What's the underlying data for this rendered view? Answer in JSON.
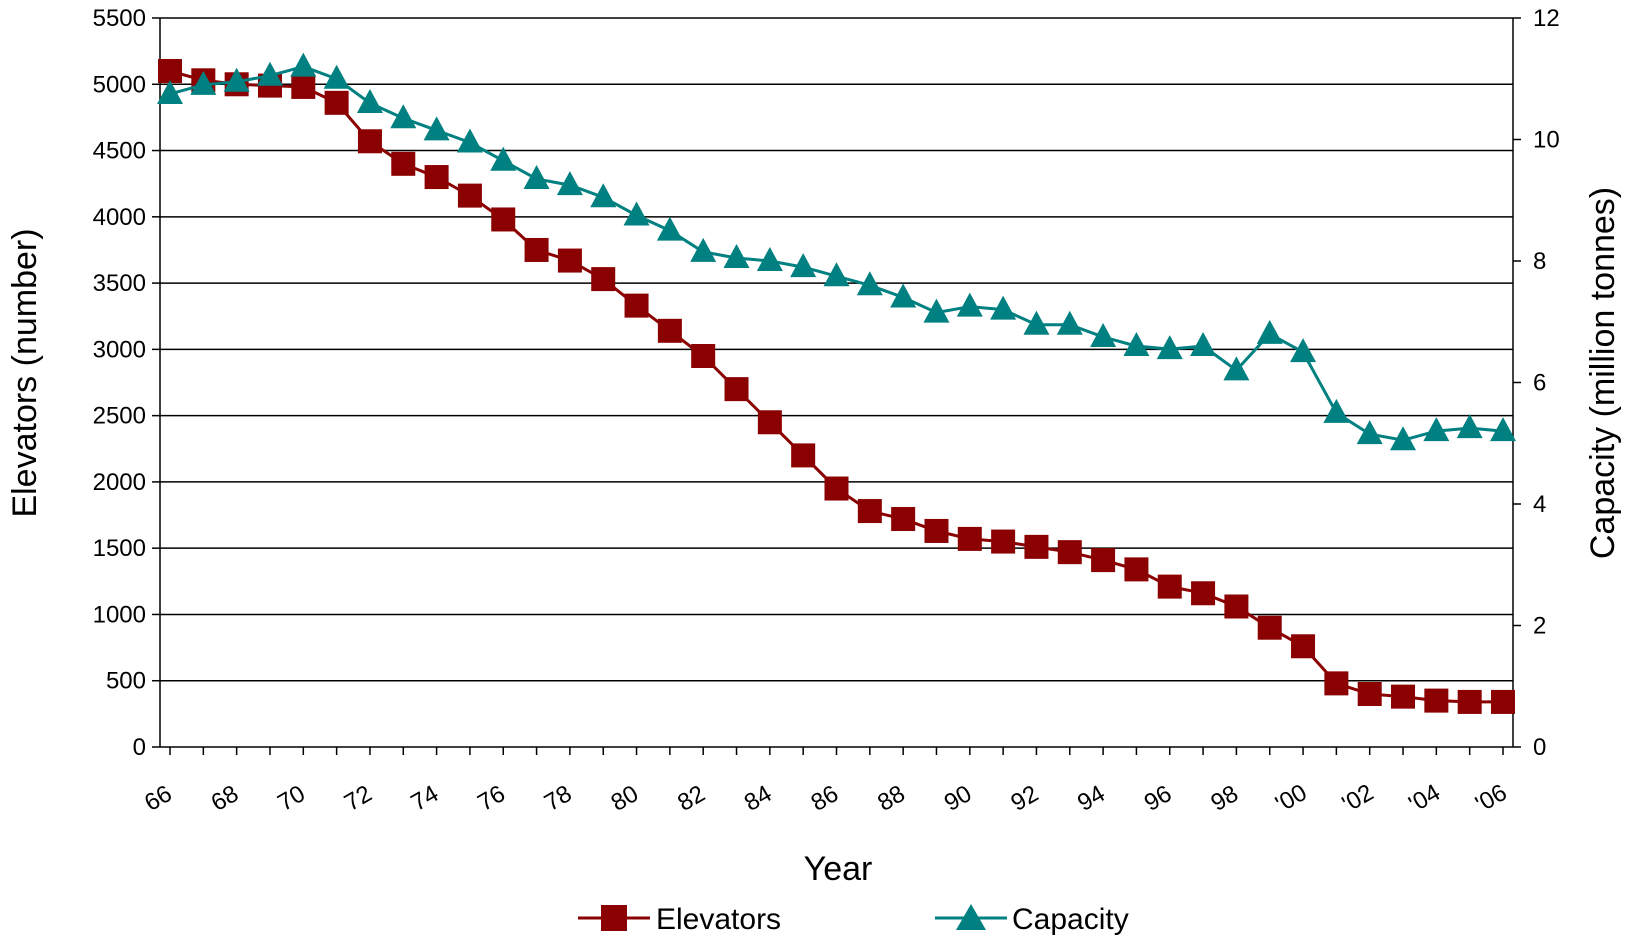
{
  "chart_data": {
    "type": "line",
    "title": "",
    "x": [
      1966,
      1967,
      1968,
      1969,
      1970,
      1971,
      1972,
      1973,
      1974,
      1975,
      1976,
      1977,
      1978,
      1979,
      1980,
      1981,
      1982,
      1983,
      1984,
      1985,
      1986,
      1987,
      1988,
      1989,
      1990,
      1991,
      1992,
      1993,
      1994,
      1995,
      1996,
      1997,
      1998,
      1999,
      2000,
      2001,
      2002,
      2003,
      2004,
      2005,
      2006
    ],
    "x_tick_labels": [
      "66",
      "68",
      "70",
      "72",
      "74",
      "76",
      "78",
      "80",
      "82",
      "84",
      "86",
      "88",
      "90",
      "92",
      "94",
      "96",
      "98",
      "'00",
      "'02",
      "'04",
      "'06"
    ],
    "xlabel": "Year",
    "ylabel_left": "Elevators (number)",
    "ylabel_right": "Capacity (million tonnes)",
    "ylim_left": [
      0,
      5500
    ],
    "ylim_right": [
      0,
      12
    ],
    "yticks_left": [
      0,
      500,
      1000,
      1500,
      2000,
      2500,
      3000,
      3500,
      4000,
      4500,
      5000,
      5500
    ],
    "yticks_right": [
      0,
      2,
      4,
      6,
      8,
      10,
      12
    ],
    "grid": "horizontal",
    "legend_position": "bottom",
    "series": [
      {
        "name": "Elevators",
        "axis": "left",
        "marker": "square",
        "color": "#8B0000",
        "values": [
          5100,
          5030,
          5000,
          4990,
          4980,
          4860,
          4570,
          4400,
          4300,
          4160,
          3980,
          3750,
          3670,
          3530,
          3330,
          3140,
          2950,
          2700,
          2450,
          2200,
          1950,
          1780,
          1720,
          1630,
          1570,
          1550,
          1510,
          1470,
          1410,
          1340,
          1210,
          1160,
          1060,
          900,
          760,
          480,
          400,
          380,
          350,
          340,
          340
        ]
      },
      {
        "name": "Capacity",
        "axis": "right",
        "marker": "triangle",
        "color": "#008080",
        "values": [
          10.75,
          10.9,
          10.95,
          11.05,
          11.2,
          11.0,
          10.6,
          10.35,
          10.15,
          9.95,
          9.65,
          9.35,
          9.25,
          9.05,
          8.75,
          8.5,
          8.15,
          8.05,
          8.0,
          7.9,
          7.75,
          7.6,
          7.4,
          7.15,
          7.25,
          7.2,
          6.95,
          6.95,
          6.75,
          6.6,
          6.55,
          6.6,
          6.2,
          6.8,
          6.5,
          5.5,
          5.15,
          5.05,
          5.2,
          5.25,
          5.2
        ]
      }
    ]
  }
}
